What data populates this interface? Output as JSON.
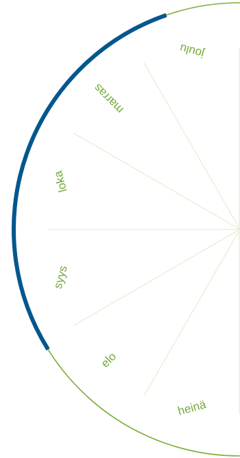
{
  "months": [
    {
      "label": "joulu",
      "angle_deg": -75
    },
    {
      "label": "marras",
      "angle_deg": -45
    },
    {
      "label": "loka",
      "angle_deg": -15
    },
    {
      "label": "syys",
      "angle_deg": 15
    },
    {
      "label": "elo",
      "angle_deg": 45
    },
    {
      "label": "heinä",
      "angle_deg": 75
    }
  ],
  "colors": {
    "rim": "#7aad36",
    "divider": "#e6efd3",
    "label": "#74a83a",
    "highlight": "#04578e"
  }
}
